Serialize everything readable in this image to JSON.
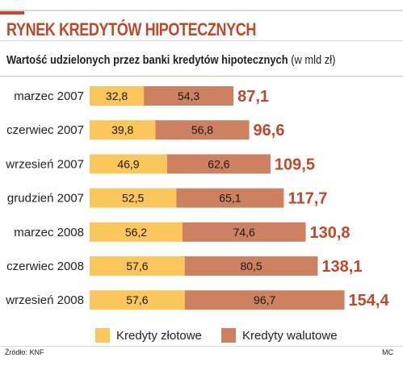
{
  "colors": {
    "title": "#c0492b",
    "zlote": "#fbc65c",
    "walutowe": "#cd8160",
    "total": "#c0492b"
  },
  "header": {
    "title": "RYNEK KREDYTÓW HIPOTECZNYCH",
    "subtitle": "Wartość udzielonych przez banki kredytów hipotecznych",
    "unit": "(w mld zł)"
  },
  "legend": {
    "zlote": "Kredyty złotowe",
    "walutowe": "Kredyty walutowe"
  },
  "footer": {
    "source": "Źródło: KNF",
    "credit": "MC"
  },
  "chart_data": {
    "type": "bar",
    "orientation": "horizontal",
    "stacked": true,
    "categories": [
      "marzec 2007",
      "czerwiec 2007",
      "wrzesień 2007",
      "grudzień 2007",
      "marzec 2008",
      "czerwiec 2008",
      "wrzesień 2008"
    ],
    "series": [
      {
        "name": "Kredyty złotowe",
        "values": [
          32.8,
          39.8,
          46.9,
          52.5,
          56.2,
          57.6,
          57.6
        ],
        "labels": [
          "32,8",
          "39,8",
          "46,9",
          "52,5",
          "56,2",
          "57,6",
          "57,6"
        ]
      },
      {
        "name": "Kredyty walutowe",
        "values": [
          54.3,
          56.8,
          62.6,
          65.1,
          74.6,
          80.5,
          96.7
        ],
        "labels": [
          "54,3",
          "56,8",
          "62,6",
          "65,1",
          "74,6",
          "80,5",
          "96,7"
        ]
      }
    ],
    "totals": [
      87.1,
      96.6,
      109.5,
      117.7,
      130.8,
      138.1,
      154.4
    ],
    "total_labels": [
      "87,1",
      "96,6",
      "109,5",
      "117,7",
      "130,8",
      "138,1",
      "154,4"
    ],
    "legend_position": "bottom",
    "grid": false
  }
}
